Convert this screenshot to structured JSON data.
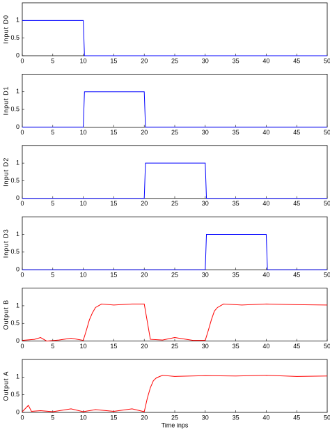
{
  "chart_data": [
    {
      "type": "line",
      "y_label": "Input D0",
      "xlim": [
        0,
        50
      ],
      "xticks": [
        0,
        5,
        10,
        15,
        20,
        25,
        30,
        35,
        40,
        45,
        50
      ],
      "ylim": [
        0,
        1.5
      ],
      "yticks": [
        0,
        0.5,
        1
      ],
      "x": [
        0,
        10,
        10.2,
        50
      ],
      "series": [
        {
          "color": "#0000ff",
          "values": [
            1,
            1,
            0,
            0
          ]
        }
      ]
    },
    {
      "type": "line",
      "y_label": "Input D1",
      "xlim": [
        0,
        50
      ],
      "xticks": [
        0,
        5,
        10,
        15,
        20,
        25,
        30,
        35,
        40,
        45,
        50
      ],
      "ylim": [
        0,
        1.5
      ],
      "yticks": [
        0,
        0.5,
        1
      ],
      "x": [
        0,
        10,
        10.2,
        20,
        20.2,
        50
      ],
      "series": [
        {
          "color": "#0000ff",
          "values": [
            0,
            0,
            1,
            1,
            0,
            0
          ]
        }
      ]
    },
    {
      "type": "line",
      "y_label": "Input D2",
      "xlim": [
        0,
        50
      ],
      "xticks": [
        0,
        5,
        10,
        15,
        20,
        25,
        30,
        35,
        40,
        45,
        50
      ],
      "ylim": [
        0,
        1.5
      ],
      "yticks": [
        0,
        0.5,
        1
      ],
      "x": [
        0,
        20,
        20.2,
        30,
        30.2,
        50
      ],
      "series": [
        {
          "color": "#0000ff",
          "values": [
            0,
            0,
            1,
            1,
            0,
            0
          ]
        }
      ]
    },
    {
      "type": "line",
      "y_label": "Input D3",
      "xlim": [
        0,
        50
      ],
      "xticks": [
        0,
        5,
        10,
        15,
        20,
        25,
        30,
        35,
        40,
        45,
        50
      ],
      "ylim": [
        0,
        1.5
      ],
      "yticks": [
        0,
        0.5,
        1
      ],
      "x": [
        0,
        30,
        30.2,
        40,
        40.2,
        50
      ],
      "series": [
        {
          "color": "#0000ff",
          "values": [
            0,
            0,
            1,
            1,
            0,
            0
          ]
        }
      ]
    },
    {
      "type": "line",
      "y_label": "Output B",
      "xlim": [
        0,
        50
      ],
      "xticks": [
        0,
        5,
        10,
        15,
        20,
        25,
        30,
        35,
        40,
        45,
        50
      ],
      "ylim": [
        0,
        1.5
      ],
      "yticks": [
        0,
        0.5,
        1
      ],
      "x": [
        0,
        2,
        3,
        4,
        6,
        8,
        10,
        10.5,
        11,
        11.5,
        12,
        13,
        15,
        18,
        20,
        21,
        23,
        25,
        28,
        30,
        30.5,
        31,
        31.5,
        32,
        33,
        36,
        40,
        45,
        50
      ],
      "series": [
        {
          "color": "#ff0000",
          "values": [
            0.02,
            0.05,
            0.1,
            0,
            0.03,
            0.08,
            0.02,
            0.3,
            0.6,
            0.8,
            0.95,
            1.05,
            1.02,
            1.05,
            1.05,
            0.05,
            0.03,
            0.1,
            0.02,
            0.02,
            0.3,
            0.6,
            0.85,
            0.95,
            1.05,
            1.02,
            1.05,
            1.03,
            1.02
          ]
        }
      ]
    },
    {
      "type": "line",
      "y_label": "Output A",
      "x_label": "Time inps",
      "xlim": [
        0,
        50
      ],
      "xticks": [
        0,
        5,
        10,
        15,
        20,
        25,
        30,
        35,
        40,
        45,
        50
      ],
      "ylim": [
        0,
        1.5
      ],
      "yticks": [
        0,
        0.5,
        1
      ],
      "x": [
        0,
        1,
        1.5,
        3,
        5,
        8,
        10,
        12,
        15,
        18,
        20,
        20.5,
        21,
        21.5,
        22,
        23,
        25,
        30,
        35,
        40,
        45,
        50
      ],
      "series": [
        {
          "color": "#ff0000",
          "values": [
            0.02,
            0.2,
            0.03,
            0.05,
            0.02,
            0.1,
            0.02,
            0.08,
            0.03,
            0.1,
            0.02,
            0.4,
            0.7,
            0.9,
            0.98,
            1.05,
            1.02,
            1.04,
            1.03,
            1.05,
            1.02,
            1.03
          ]
        }
      ]
    }
  ]
}
